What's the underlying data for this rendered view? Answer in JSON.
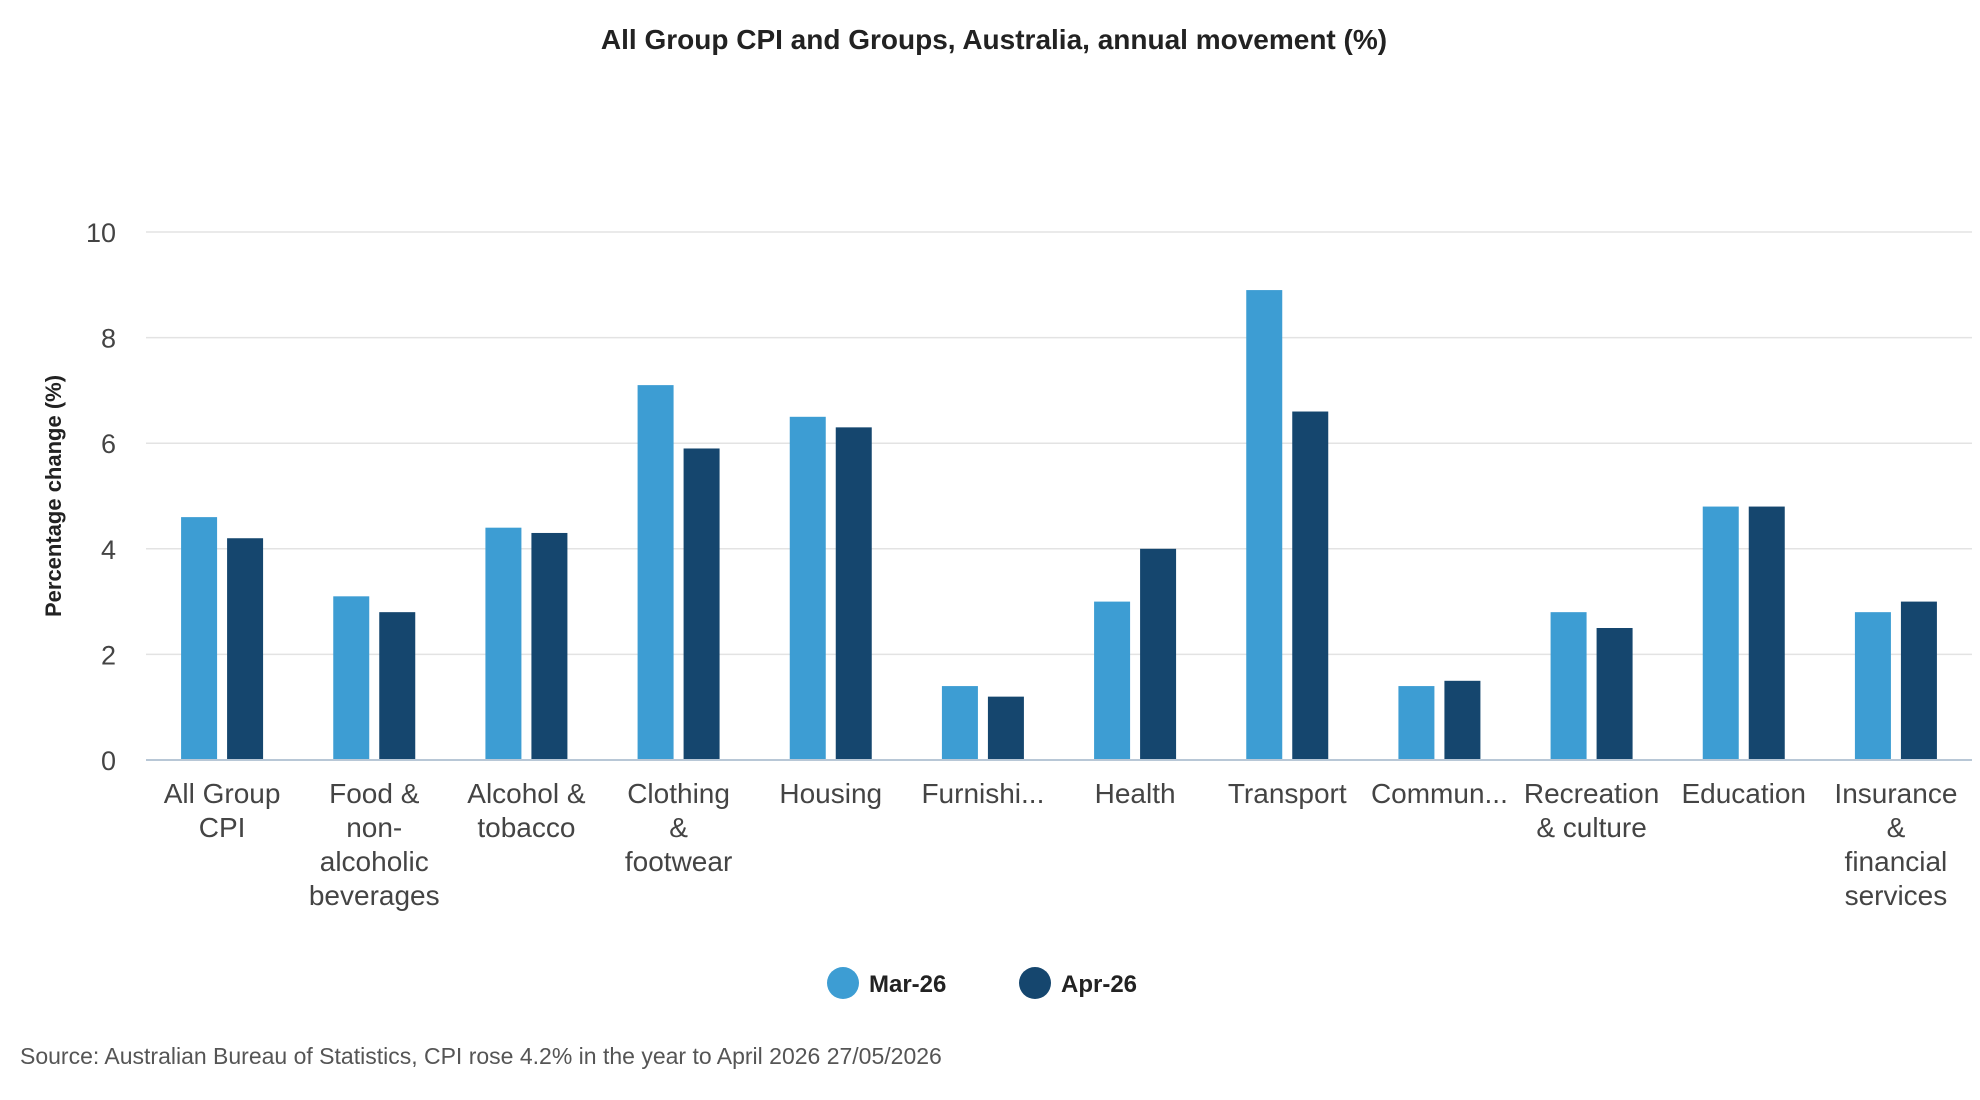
{
  "chart_data": {
    "type": "bar",
    "title": "All Group CPI and Groups, Australia, annual movement (%)",
    "ylabel": "Percentage change (%)",
    "xlabel": "",
    "ylim": [
      0,
      10
    ],
    "yticks": [
      0,
      2,
      4,
      6,
      8,
      10
    ],
    "grid": true,
    "legend_position": "bottom-center",
    "categories": [
      "All Group CPI",
      "Food & non-alcoholic beverages",
      "Alcohol & tobacco",
      "Clothing & footwear",
      "Housing",
      "Furnishi...",
      "Health",
      "Transport",
      "Commun...",
      "Recreation & culture",
      "Education",
      "Insurance & financial services"
    ],
    "category_label_lines": [
      [
        "All Group",
        "CPI"
      ],
      [
        "Food &",
        "non-",
        "alcoholic",
        "beverages"
      ],
      [
        "Alcohol &",
        "tobacco"
      ],
      [
        "Clothing",
        "&",
        "footwear"
      ],
      [
        "Housing"
      ],
      [
        "Furnishi..."
      ],
      [
        "Health"
      ],
      [
        "Transport"
      ],
      [
        "Commun..."
      ],
      [
        "Recreation",
        "& culture"
      ],
      [
        "Education"
      ],
      [
        "Insurance",
        "&",
        "financial",
        "services"
      ]
    ],
    "series": [
      {
        "name": "Mar-26",
        "color": "#3d9dd3",
        "values": [
          4.6,
          3.1,
          4.4,
          7.1,
          6.5,
          1.4,
          3.0,
          8.9,
          1.4,
          2.8,
          4.8,
          2.8
        ]
      },
      {
        "name": "Apr-26",
        "color": "#15466e",
        "values": [
          4.2,
          2.8,
          4.3,
          5.9,
          6.3,
          1.2,
          4.0,
          6.6,
          1.5,
          2.5,
          4.8,
          3.0
        ]
      }
    ]
  },
  "source_text": "Source: Australian Bureau of Statistics, CPI rose 4.2% in the year to April 2026 27/05/2026"
}
